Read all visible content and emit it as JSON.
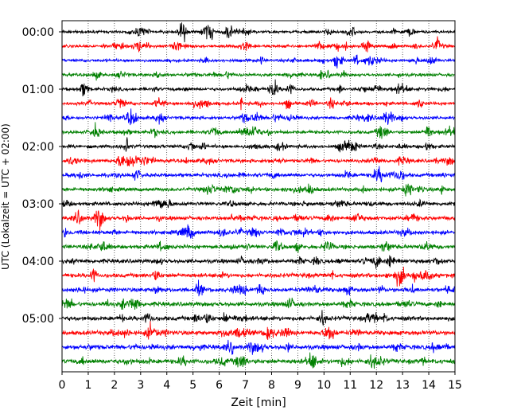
{
  "chart_data": {
    "type": "line",
    "title": "",
    "xlabel": "Zeit  [min]",
    "ylabel": "UTC (Lokalzeit = UTC + 02:00)",
    "xlim": [
      0,
      15
    ],
    "x_ticks": [
      "0",
      "1",
      "2",
      "3",
      "4",
      "5",
      "6",
      "7",
      "8",
      "9",
      "10",
      "11",
      "12",
      "13",
      "14",
      "15"
    ],
    "y_ticks": [
      {
        "label": "00:00",
        "trace_index": 0
      },
      {
        "label": "01:00",
        "trace_index": 4
      },
      {
        "label": "02:00",
        "trace_index": 8
      },
      {
        "label": "03:00",
        "trace_index": 12
      },
      {
        "label": "04:00",
        "trace_index": 16
      },
      {
        "label": "05:00",
        "trace_index": 20
      }
    ],
    "trace_count": 24,
    "trace_interval_min": 15,
    "trace_colors": [
      "#000000",
      "#ff0000",
      "#0000ff",
      "#008000"
    ],
    "grid": {
      "x": true,
      "y": false,
      "style": "dotted"
    },
    "legend": "none"
  }
}
